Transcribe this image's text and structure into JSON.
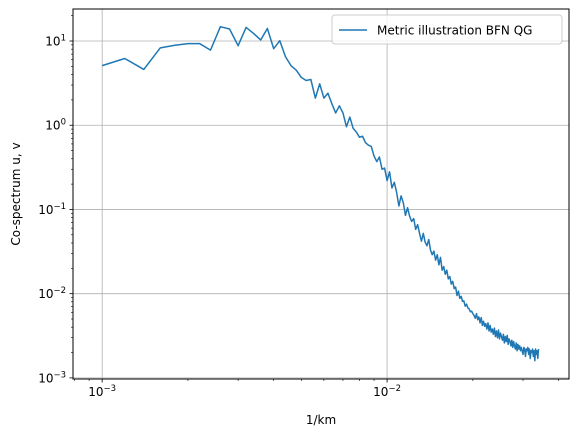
{
  "chart_data": {
    "type": "line",
    "xscale": "log",
    "yscale": "log",
    "xlim": [
      0.00079,
      0.0435
    ],
    "ylim": [
      0.00097,
      24
    ],
    "grid": true,
    "legend_position": "top-right",
    "title": "",
    "xlabel": "1/km",
    "ylabel": "Co-spectrum u, v",
    "x_ticks": [
      {
        "value": 0.001,
        "base": "10",
        "exp": "−3"
      },
      {
        "value": 0.01,
        "base": "10",
        "exp": "−2"
      }
    ],
    "y_ticks": [
      {
        "value": 0.001,
        "base": "10",
        "exp": "−3"
      },
      {
        "value": 0.01,
        "base": "10",
        "exp": "−2"
      },
      {
        "value": 0.1,
        "base": "10",
        "exp": "−1"
      },
      {
        "value": 1,
        "base": "10",
        "exp": "0"
      },
      {
        "value": 10,
        "base": "10",
        "exp": "1"
      }
    ],
    "series": [
      {
        "name": "Metric illustration BFN QG",
        "color": "#1f77b4",
        "x": [
          0.001,
          0.0012,
          0.0014,
          0.0016,
          0.0018,
          0.002,
          0.0022,
          0.0024,
          0.0026,
          0.0028,
          0.003,
          0.0032,
          0.0034,
          0.0036,
          0.0038,
          0.004,
          0.0042,
          0.0044,
          0.0046,
          0.0048,
          0.005,
          0.0052,
          0.0054,
          0.0056,
          0.0058,
          0.006,
          0.0062,
          0.0064,
          0.0066,
          0.0068,
          0.007,
          0.0072,
          0.0074,
          0.0076,
          0.0078,
          0.008,
          0.0082,
          0.0084,
          0.0086,
          0.0088,
          0.009,
          0.0092,
          0.0094,
          0.0096,
          0.0098,
          0.01,
          0.0102,
          0.0104,
          0.0106,
          0.0108,
          0.011,
          0.0112,
          0.0114,
          0.0116,
          0.0118,
          0.012,
          0.0122,
          0.0124,
          0.0126,
          0.0128,
          0.013,
          0.0132,
          0.0134,
          0.0136,
          0.0138,
          0.014,
          0.0142,
          0.0144,
          0.0146,
          0.0148,
          0.015,
          0.0152,
          0.0154,
          0.0156,
          0.0158,
          0.016,
          0.0162,
          0.0164,
          0.0166,
          0.0168,
          0.017,
          0.0172,
          0.0174,
          0.0176,
          0.0178,
          0.018,
          0.0182,
          0.0184,
          0.0186,
          0.0188,
          0.019,
          0.0192,
          0.0194,
          0.0196,
          0.0198,
          0.02,
          0.0202,
          0.0204,
          0.0206,
          0.0208,
          0.021,
          0.0212,
          0.0214,
          0.0216,
          0.0218,
          0.022,
          0.0222,
          0.0224,
          0.0226,
          0.0228,
          0.023,
          0.0232,
          0.0234,
          0.0236,
          0.0238,
          0.024,
          0.0242,
          0.0244,
          0.0246,
          0.0248,
          0.025,
          0.0252,
          0.0254,
          0.0256,
          0.0258,
          0.026,
          0.0262,
          0.0264,
          0.0266,
          0.0268,
          0.027,
          0.0272,
          0.0274,
          0.0276,
          0.0278,
          0.028,
          0.0282,
          0.0284,
          0.0286,
          0.0288,
          0.029,
          0.0292,
          0.0294,
          0.0296,
          0.0298,
          0.03,
          0.0302,
          0.0304,
          0.0306,
          0.0308,
          0.031,
          0.0312,
          0.0314,
          0.0316,
          0.0318,
          0.032,
          0.0322,
          0.0324,
          0.0326,
          0.0328,
          0.033,
          0.0332,
          0.0334,
          0.0336,
          0.0338,
          0.034
        ],
        "y": [
          5.1,
          6.2,
          4.6,
          8.3,
          8.9,
          9.3,
          9.3,
          7.8,
          14.8,
          13.9,
          8.8,
          14.5,
          12.3,
          10.3,
          14.1,
          8.1,
          10.1,
          6.5,
          5.1,
          4.5,
          3.7,
          3.4,
          3.5,
          2.1,
          3.1,
          2.1,
          2.4,
          1.8,
          1.4,
          1.7,
          1.4,
          0.96,
          1.25,
          0.92,
          0.83,
          0.72,
          0.74,
          0.62,
          0.58,
          0.56,
          0.43,
          0.37,
          0.42,
          0.3,
          0.31,
          0.22,
          0.28,
          0.18,
          0.21,
          0.16,
          0.11,
          0.145,
          0.12,
          0.085,
          0.105,
          0.083,
          0.072,
          0.078,
          0.058,
          0.066,
          0.052,
          0.042,
          0.052,
          0.041,
          0.037,
          0.044,
          0.033,
          0.029,
          0.032,
          0.025,
          0.029,
          0.022,
          0.027,
          0.019,
          0.021,
          0.017,
          0.019,
          0.015,
          0.016,
          0.013,
          0.014,
          0.0115,
          0.012,
          0.0095,
          0.0107,
          0.0088,
          0.0093,
          0.0081,
          0.0082,
          0.0071,
          0.0075,
          0.0068,
          0.0066,
          0.0061,
          0.0062,
          0.0058,
          0.0055,
          0.0051,
          0.0058,
          0.0049,
          0.0053,
          0.0045,
          0.0052,
          0.0042,
          0.0047,
          0.0041,
          0.0044,
          0.0038,
          0.0045,
          0.0036,
          0.0042,
          0.0035,
          0.0038,
          0.0033,
          0.0039,
          0.0031,
          0.0036,
          0.003,
          0.0037,
          0.0029,
          0.0034,
          0.0031,
          0.0028,
          0.0033,
          0.0026,
          0.0031,
          0.0027,
          0.0032,
          0.0025,
          0.0029,
          0.0027,
          0.0024,
          0.0028,
          0.0023,
          0.0027,
          0.0024,
          0.0022,
          0.0026,
          0.0021,
          0.0025,
          0.0022,
          0.0024,
          0.0021,
          0.0023,
          0.0021,
          0.0019,
          0.0023,
          0.0022,
          0.0018,
          0.0022,
          0.0021,
          0.0023,
          0.0019,
          0.0022,
          0.0017,
          0.0021,
          0.002,
          0.0022,
          0.0018,
          0.0021,
          0.0016,
          0.0022,
          0.0019,
          0.0021,
          0.0017,
          0.0022
        ]
      }
    ]
  }
}
